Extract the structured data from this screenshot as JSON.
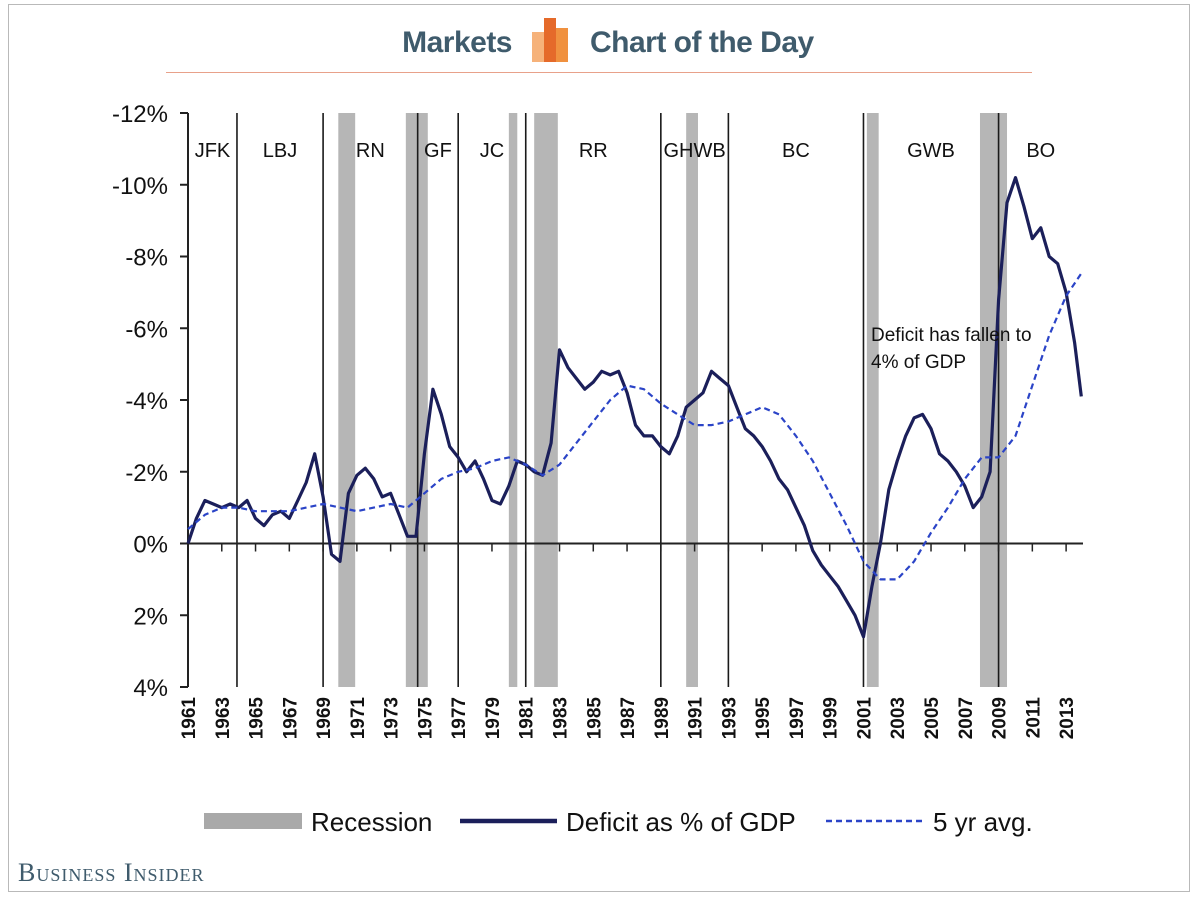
{
  "header": {
    "left_label": "Markets",
    "right_label": "Chart of the Day",
    "logo_icon": "bar-logo-icon",
    "accent_color": "#f0913f"
  },
  "footer": {
    "brand": "Business Insider"
  },
  "chart_data": {
    "type": "line",
    "title": "",
    "xlabel": "",
    "ylabel": "",
    "x_ticks": [
      1961,
      1963,
      1965,
      1967,
      1969,
      1971,
      1973,
      1975,
      1977,
      1979,
      1981,
      1983,
      1985,
      1987,
      1989,
      1991,
      1993,
      1995,
      1997,
      1999,
      2001,
      2003,
      2005,
      2007,
      2009,
      2011,
      2013
    ],
    "xlim": [
      1961,
      2014
    ],
    "y_ticks": [
      {
        "value": -12,
        "label": "-12%"
      },
      {
        "value": -10,
        "label": "-10%"
      },
      {
        "value": -8,
        "label": "-8%"
      },
      {
        "value": -6,
        "label": "-6%"
      },
      {
        "value": -4,
        "label": "-4%"
      },
      {
        "value": -2,
        "label": "-2%"
      },
      {
        "value": 0,
        "label": "0%"
      },
      {
        "value": 2,
        "label": "2%"
      },
      {
        "value": 4,
        "label": "4%"
      }
    ],
    "ylim": [
      -12,
      4
    ],
    "y_inverted": true,
    "presidents": [
      {
        "name": "JFK",
        "start": 1961.0
      },
      {
        "name": "LBJ",
        "start": 1963.9
      },
      {
        "name": "RN",
        "start": 1969.0
      },
      {
        "name": "GF",
        "start": 1974.6
      },
      {
        "name": "JC",
        "start": 1977.0
      },
      {
        "name": "RR",
        "start": 1981.0
      },
      {
        "name": "GHWB",
        "start": 1989.0
      },
      {
        "name": "BC",
        "start": 1993.0
      },
      {
        "name": "GWB",
        "start": 2001.0
      },
      {
        "name": "BO",
        "start": 2009.0
      }
    ],
    "recessions": [
      [
        1969.9,
        1970.9
      ],
      [
        1973.9,
        1975.2
      ],
      [
        1980.0,
        1980.5
      ],
      [
        1981.5,
        1982.9
      ],
      [
        1990.5,
        1991.2
      ],
      [
        2001.2,
        2001.9
      ],
      [
        2007.9,
        2009.5
      ]
    ],
    "series": [
      {
        "name": "Deficit as % of GDP",
        "color": "#1b1f5a",
        "style": "solid",
        "x": [
          1961.0,
          1961.5,
          1962.0,
          1962.5,
          1963.0,
          1963.5,
          1964.0,
          1964.5,
          1965.0,
          1965.5,
          1966.0,
          1966.5,
          1967.0,
          1967.5,
          1968.0,
          1968.5,
          1969.0,
          1969.5,
          1970.0,
          1970.5,
          1971.0,
          1971.5,
          1972.0,
          1972.5,
          1973.0,
          1973.5,
          1974.0,
          1974.5,
          1975.0,
          1975.5,
          1976.0,
          1976.5,
          1977.0,
          1977.5,
          1978.0,
          1978.5,
          1979.0,
          1979.5,
          1980.0,
          1980.5,
          1981.0,
          1981.5,
          1982.0,
          1982.5,
          1983.0,
          1983.5,
          1984.0,
          1984.5,
          1985.0,
          1985.5,
          1986.0,
          1986.5,
          1987.0,
          1987.5,
          1988.0,
          1988.5,
          1989.0,
          1989.5,
          1990.0,
          1990.5,
          1991.0,
          1991.5,
          1992.0,
          1992.5,
          1993.0,
          1993.5,
          1994.0,
          1994.5,
          1995.0,
          1995.5,
          1996.0,
          1996.5,
          1997.0,
          1997.5,
          1998.0,
          1998.5,
          1999.0,
          1999.5,
          2000.0,
          2000.5,
          2001.0,
          2001.5,
          2002.0,
          2002.5,
          2003.0,
          2003.5,
          2004.0,
          2004.5,
          2005.0,
          2005.5,
          2006.0,
          2006.5,
          2007.0,
          2007.5,
          2008.0,
          2008.5,
          2009.0,
          2009.5,
          2010.0,
          2010.5,
          2011.0,
          2011.5,
          2012.0,
          2012.5,
          2013.0,
          2013.5,
          2013.9
        ],
        "values": [
          0.0,
          -0.7,
          -1.2,
          -1.1,
          -1.0,
          -1.1,
          -1.0,
          -1.2,
          -0.7,
          -0.5,
          -0.8,
          -0.9,
          -0.7,
          -1.2,
          -1.7,
          -2.5,
          -1.3,
          0.3,
          0.5,
          -1.4,
          -1.9,
          -2.1,
          -1.8,
          -1.3,
          -1.4,
          -0.8,
          -0.2,
          -0.2,
          -2.5,
          -4.3,
          -3.6,
          -2.7,
          -2.4,
          -2.0,
          -2.3,
          -1.8,
          -1.2,
          -1.1,
          -1.6,
          -2.3,
          -2.2,
          -2.0,
          -1.9,
          -2.8,
          -5.4,
          -4.9,
          -4.6,
          -4.3,
          -4.5,
          -4.8,
          -4.7,
          -4.8,
          -4.2,
          -3.3,
          -3.0,
          -3.0,
          -2.7,
          -2.5,
          -3.0,
          -3.8,
          -4.0,
          -4.2,
          -4.8,
          -4.6,
          -4.4,
          -3.8,
          -3.2,
          -3.0,
          -2.7,
          -2.3,
          -1.8,
          -1.5,
          -1.0,
          -0.5,
          0.2,
          0.6,
          0.9,
          1.2,
          1.6,
          2.0,
          2.6,
          1.2,
          0.0,
          -1.5,
          -2.3,
          -3.0,
          -3.5,
          -3.6,
          -3.2,
          -2.5,
          -2.3,
          -2.0,
          -1.6,
          -1.0,
          -1.3,
          -2.0,
          -6.8,
          -9.5,
          -10.2,
          -9.4,
          -8.5,
          -8.8,
          -8.0,
          -7.8,
          -7.0,
          -5.6,
          -4.1
        ]
      },
      {
        "name": "5 yr avg.",
        "color": "#2b44c7",
        "style": "dashed",
        "x": [
          1961,
          1962,
          1963,
          1964,
          1965,
          1966,
          1967,
          1968,
          1969,
          1970,
          1971,
          1972,
          1973,
          1974,
          1975,
          1976,
          1977,
          1978,
          1979,
          1980,
          1981,
          1982,
          1983,
          1984,
          1985,
          1986,
          1987,
          1988,
          1989,
          1990,
          1991,
          1992,
          1993,
          1994,
          1995,
          1996,
          1997,
          1998,
          1999,
          2000,
          2001,
          2002,
          2003,
          2004,
          2005,
          2006,
          2007,
          2008,
          2009,
          2010,
          2011,
          2012,
          2013,
          2014
        ],
        "values": [
          -0.4,
          -0.8,
          -1.0,
          -1.0,
          -0.9,
          -0.9,
          -0.9,
          -1.0,
          -1.1,
          -1.0,
          -0.9,
          -1.0,
          -1.1,
          -1.0,
          -1.4,
          -1.8,
          -2.0,
          -2.1,
          -2.3,
          -2.4,
          -2.2,
          -1.9,
          -2.2,
          -2.8,
          -3.4,
          -4.0,
          -4.4,
          -4.3,
          -3.9,
          -3.6,
          -3.3,
          -3.3,
          -3.4,
          -3.6,
          -3.8,
          -3.6,
          -3.0,
          -2.3,
          -1.4,
          -0.5,
          0.5,
          1.0,
          1.0,
          0.5,
          -0.3,
          -1.0,
          -1.8,
          -2.4,
          -2.4,
          -3.0,
          -4.4,
          -5.8,
          -6.9,
          -7.6
        ]
      }
    ],
    "annotation": "Deficit  has fallen to 4% of GDP",
    "legend": {
      "placement": "bottom",
      "items": [
        {
          "label": "Recession",
          "kind": "bar",
          "color": "#a9a9a9"
        },
        {
          "label": "Deficit as % of GDP",
          "kind": "solid",
          "color": "#1b1f5a"
        },
        {
          "label": "5 yr avg.",
          "kind": "dashed",
          "color": "#2b44c7"
        }
      ]
    },
    "grid": false
  }
}
